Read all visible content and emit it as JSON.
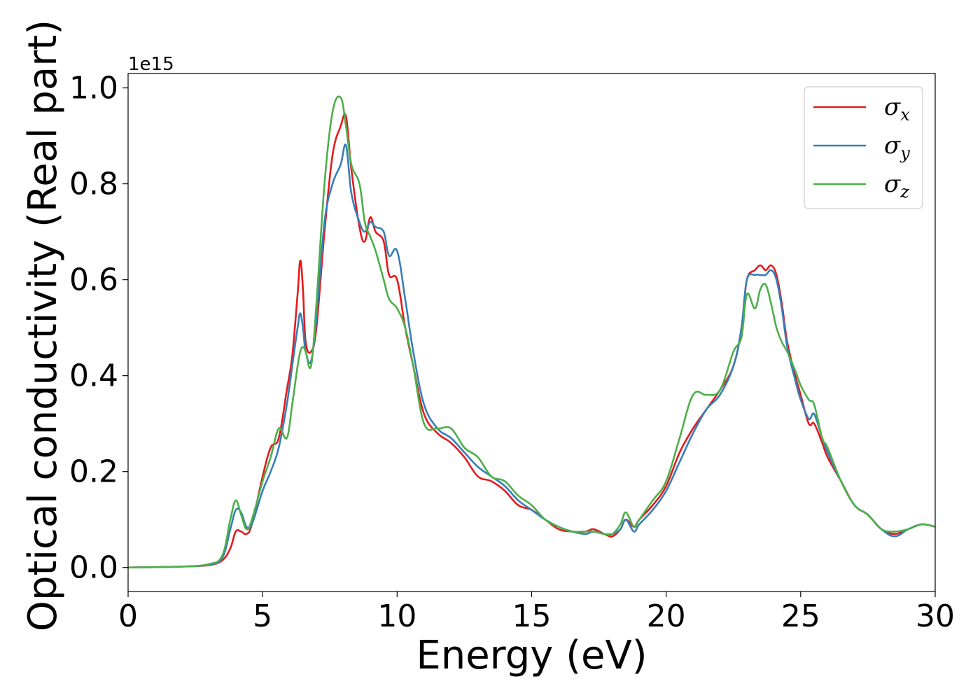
{
  "chart_data": {
    "type": "line",
    "xlabel": "Energy (eV)",
    "ylabel": "Optical conductivity (Real part)",
    "y_offset_label": "1e15",
    "xlim": [
      0,
      30
    ],
    "ylim": [
      -0.05,
      1.03
    ],
    "x_ticks": [
      0,
      5,
      10,
      15,
      20,
      25,
      30
    ],
    "x_tick_labels": [
      "0",
      "5",
      "10",
      "15",
      "20",
      "25",
      "30"
    ],
    "y_ticks": [
      0.0,
      0.2,
      0.4,
      0.6,
      0.8,
      1.0
    ],
    "y_tick_labels": [
      "0.0",
      "0.2",
      "0.4",
      "0.6",
      "0.8",
      "1.0"
    ],
    "grid": false,
    "legend_position": "top-right",
    "series": [
      {
        "name": "σx",
        "name_base": "σ",
        "name_sub": "x",
        "color": "#e41a1c",
        "x": [
          0,
          2,
          3,
          3.5,
          3.8,
          4.0,
          4.2,
          4.4,
          4.6,
          5.0,
          5.3,
          5.6,
          5.9,
          6.1,
          6.3,
          6.4,
          6.5,
          6.6,
          6.8,
          7.0,
          7.3,
          7.6,
          7.9,
          8.1,
          8.3,
          8.6,
          8.8,
          9.0,
          9.2,
          9.5,
          9.7,
          10.0,
          10.3,
          10.6,
          11.0,
          11.5,
          12.0,
          12.5,
          13.0,
          13.5,
          14.0,
          14.5,
          15.0,
          15.5,
          16.0,
          16.5,
          17.0,
          17.3,
          17.7,
          18.0,
          18.3,
          18.5,
          18.8,
          19.0,
          19.5,
          20.0,
          20.5,
          21.0,
          21.5,
          22.0,
          22.5,
          22.8,
          23.0,
          23.3,
          23.5,
          23.7,
          23.9,
          24.1,
          24.3,
          24.5,
          24.8,
          25.0,
          25.3,
          25.5,
          25.8,
          26.0,
          26.5,
          27.0,
          27.5,
          28.0,
          28.5,
          29.0,
          29.5,
          30.0
        ],
        "y": [
          0.0,
          0.002,
          0.005,
          0.015,
          0.04,
          0.075,
          0.075,
          0.07,
          0.09,
          0.19,
          0.25,
          0.27,
          0.37,
          0.44,
          0.57,
          0.64,
          0.58,
          0.47,
          0.45,
          0.5,
          0.7,
          0.86,
          0.92,
          0.94,
          0.83,
          0.71,
          0.68,
          0.73,
          0.7,
          0.68,
          0.61,
          0.6,
          0.5,
          0.42,
          0.32,
          0.28,
          0.26,
          0.23,
          0.19,
          0.18,
          0.16,
          0.13,
          0.12,
          0.1,
          0.08,
          0.075,
          0.075,
          0.08,
          0.07,
          0.065,
          0.08,
          0.1,
          0.085,
          0.1,
          0.13,
          0.17,
          0.24,
          0.29,
          0.33,
          0.37,
          0.42,
          0.5,
          0.6,
          0.62,
          0.63,
          0.62,
          0.63,
          0.61,
          0.55,
          0.47,
          0.4,
          0.36,
          0.3,
          0.3,
          0.26,
          0.23,
          0.18,
          0.13,
          0.11,
          0.08,
          0.07,
          0.08,
          0.09,
          0.085
        ]
      },
      {
        "name": "σy",
        "name_base": "σ",
        "name_sub": "y",
        "color": "#377eb8",
        "x": [
          0,
          2,
          3,
          3.5,
          3.8,
          4.0,
          4.2,
          4.4,
          4.6,
          5.0,
          5.3,
          5.6,
          5.9,
          6.1,
          6.3,
          6.4,
          6.5,
          6.6,
          6.8,
          7.0,
          7.3,
          7.6,
          7.9,
          8.1,
          8.3,
          8.6,
          8.8,
          9.0,
          9.2,
          9.5,
          9.7,
          10.0,
          10.3,
          10.6,
          11.0,
          11.5,
          12.0,
          12.5,
          13.0,
          13.5,
          14.0,
          14.5,
          15.0,
          15.5,
          16.0,
          16.5,
          17.0,
          17.3,
          17.7,
          18.0,
          18.3,
          18.5,
          18.8,
          19.0,
          19.5,
          20.0,
          20.5,
          21.0,
          21.5,
          22.0,
          22.5,
          22.8,
          23.0,
          23.3,
          23.5,
          23.7,
          23.9,
          24.1,
          24.3,
          24.5,
          24.8,
          25.0,
          25.3,
          25.5,
          25.8,
          26.0,
          26.5,
          27.0,
          27.5,
          28.0,
          28.5,
          29.0,
          29.5,
          30.0
        ],
        "y": [
          0.0,
          0.002,
          0.006,
          0.02,
          0.08,
          0.12,
          0.115,
          0.085,
          0.09,
          0.16,
          0.2,
          0.25,
          0.34,
          0.42,
          0.5,
          0.53,
          0.5,
          0.45,
          0.43,
          0.52,
          0.72,
          0.8,
          0.84,
          0.88,
          0.78,
          0.72,
          0.7,
          0.72,
          0.71,
          0.7,
          0.65,
          0.66,
          0.56,
          0.45,
          0.34,
          0.29,
          0.27,
          0.24,
          0.21,
          0.19,
          0.17,
          0.14,
          0.12,
          0.1,
          0.085,
          0.075,
          0.07,
          0.075,
          0.07,
          0.07,
          0.08,
          0.1,
          0.075,
          0.09,
          0.12,
          0.16,
          0.22,
          0.28,
          0.33,
          0.36,
          0.42,
          0.5,
          0.6,
          0.61,
          0.61,
          0.61,
          0.62,
          0.6,
          0.54,
          0.46,
          0.39,
          0.35,
          0.31,
          0.32,
          0.27,
          0.24,
          0.18,
          0.13,
          0.11,
          0.08,
          0.065,
          0.08,
          0.09,
          0.085
        ]
      },
      {
        "name": "σz",
        "name_base": "σ",
        "name_sub": "z",
        "color": "#4daf4a",
        "x": [
          0,
          2,
          3,
          3.5,
          3.8,
          4.0,
          4.2,
          4.4,
          4.6,
          5.0,
          5.3,
          5.6,
          5.9,
          6.1,
          6.3,
          6.4,
          6.5,
          6.6,
          6.8,
          7.0,
          7.3,
          7.6,
          7.9,
          8.1,
          8.3,
          8.6,
          8.8,
          9.0,
          9.2,
          9.5,
          9.7,
          10.0,
          10.3,
          10.6,
          11.0,
          11.5,
          12.0,
          12.5,
          13.0,
          13.5,
          14.0,
          14.5,
          15.0,
          15.5,
          16.0,
          16.5,
          17.0,
          17.3,
          17.7,
          18.0,
          18.3,
          18.5,
          18.8,
          19.0,
          19.5,
          20.0,
          20.5,
          21.0,
          21.5,
          22.0,
          22.5,
          22.8,
          23.0,
          23.3,
          23.5,
          23.7,
          23.9,
          24.1,
          24.3,
          24.5,
          24.8,
          25.0,
          25.3,
          25.5,
          25.8,
          26.0,
          26.5,
          27.0,
          27.5,
          28.0,
          28.5,
          29.0,
          29.5,
          30.0
        ],
        "y": [
          0.0,
          0.002,
          0.007,
          0.025,
          0.1,
          0.14,
          0.11,
          0.08,
          0.1,
          0.18,
          0.23,
          0.29,
          0.27,
          0.34,
          0.42,
          0.45,
          0.46,
          0.45,
          0.42,
          0.55,
          0.8,
          0.95,
          0.98,
          0.92,
          0.84,
          0.8,
          0.72,
          0.69,
          0.66,
          0.6,
          0.56,
          0.54,
          0.5,
          0.42,
          0.3,
          0.29,
          0.29,
          0.25,
          0.23,
          0.19,
          0.18,
          0.15,
          0.13,
          0.1,
          0.085,
          0.075,
          0.075,
          0.075,
          0.07,
          0.07,
          0.09,
          0.115,
          0.085,
          0.1,
          0.14,
          0.18,
          0.27,
          0.36,
          0.36,
          0.37,
          0.45,
          0.48,
          0.57,
          0.54,
          0.58,
          0.59,
          0.55,
          0.5,
          0.47,
          0.45,
          0.41,
          0.38,
          0.35,
          0.34,
          0.27,
          0.25,
          0.18,
          0.13,
          0.11,
          0.08,
          0.075,
          0.08,
          0.09,
          0.085
        ]
      }
    ]
  }
}
